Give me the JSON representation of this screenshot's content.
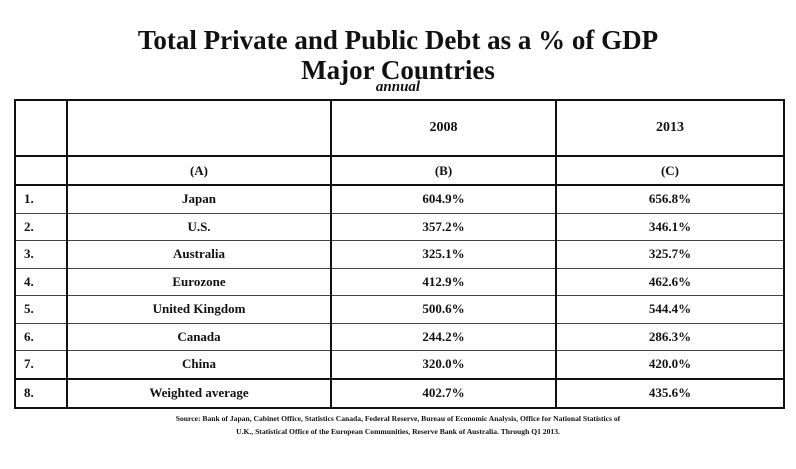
{
  "chart_data": {
    "type": "table",
    "title": "Total Private and Public Debt as a % of GDP",
    "title_line2": "Major Countries",
    "subtitle": "annual",
    "columns": [
      "2008",
      "2013"
    ],
    "column_letters": [
      "(A)",
      "(B)",
      "(C)"
    ],
    "rows": [
      {
        "num": "1.",
        "country": "Japan",
        "v2008": "604.9%",
        "v2013": "656.8%"
      },
      {
        "num": "2.",
        "country": "U.S.",
        "v2008": "357.2%",
        "v2013": "346.1%"
      },
      {
        "num": "3.",
        "country": "Australia",
        "v2008": "325.1%",
        "v2013": "325.7%"
      },
      {
        "num": "4.",
        "country": "Eurozone",
        "v2008": "412.9%",
        "v2013": "462.6%"
      },
      {
        "num": "5.",
        "country": "United Kingdom",
        "v2008": "500.6%",
        "v2013": "544.4%"
      },
      {
        "num": "6.",
        "country": "Canada",
        "v2008": "244.2%",
        "v2013": "286.3%"
      },
      {
        "num": "7.",
        "country": "China",
        "v2008": "320.0%",
        "v2013": "420.0%"
      },
      {
        "num": "8.",
        "country": "Weighted average",
        "v2008": "402.7%",
        "v2013": "435.6%"
      }
    ],
    "source_line1": "Source: Bank of Japan, Cabinet Office, Statistics Canada, Federal Reserve, Bureau of Economic Analysis, Office for National Statistics of",
    "source_line2": "U.K., Statistical Office of the European Communities, Reserve Bank of Australia.   Through Q1 2013."
  }
}
